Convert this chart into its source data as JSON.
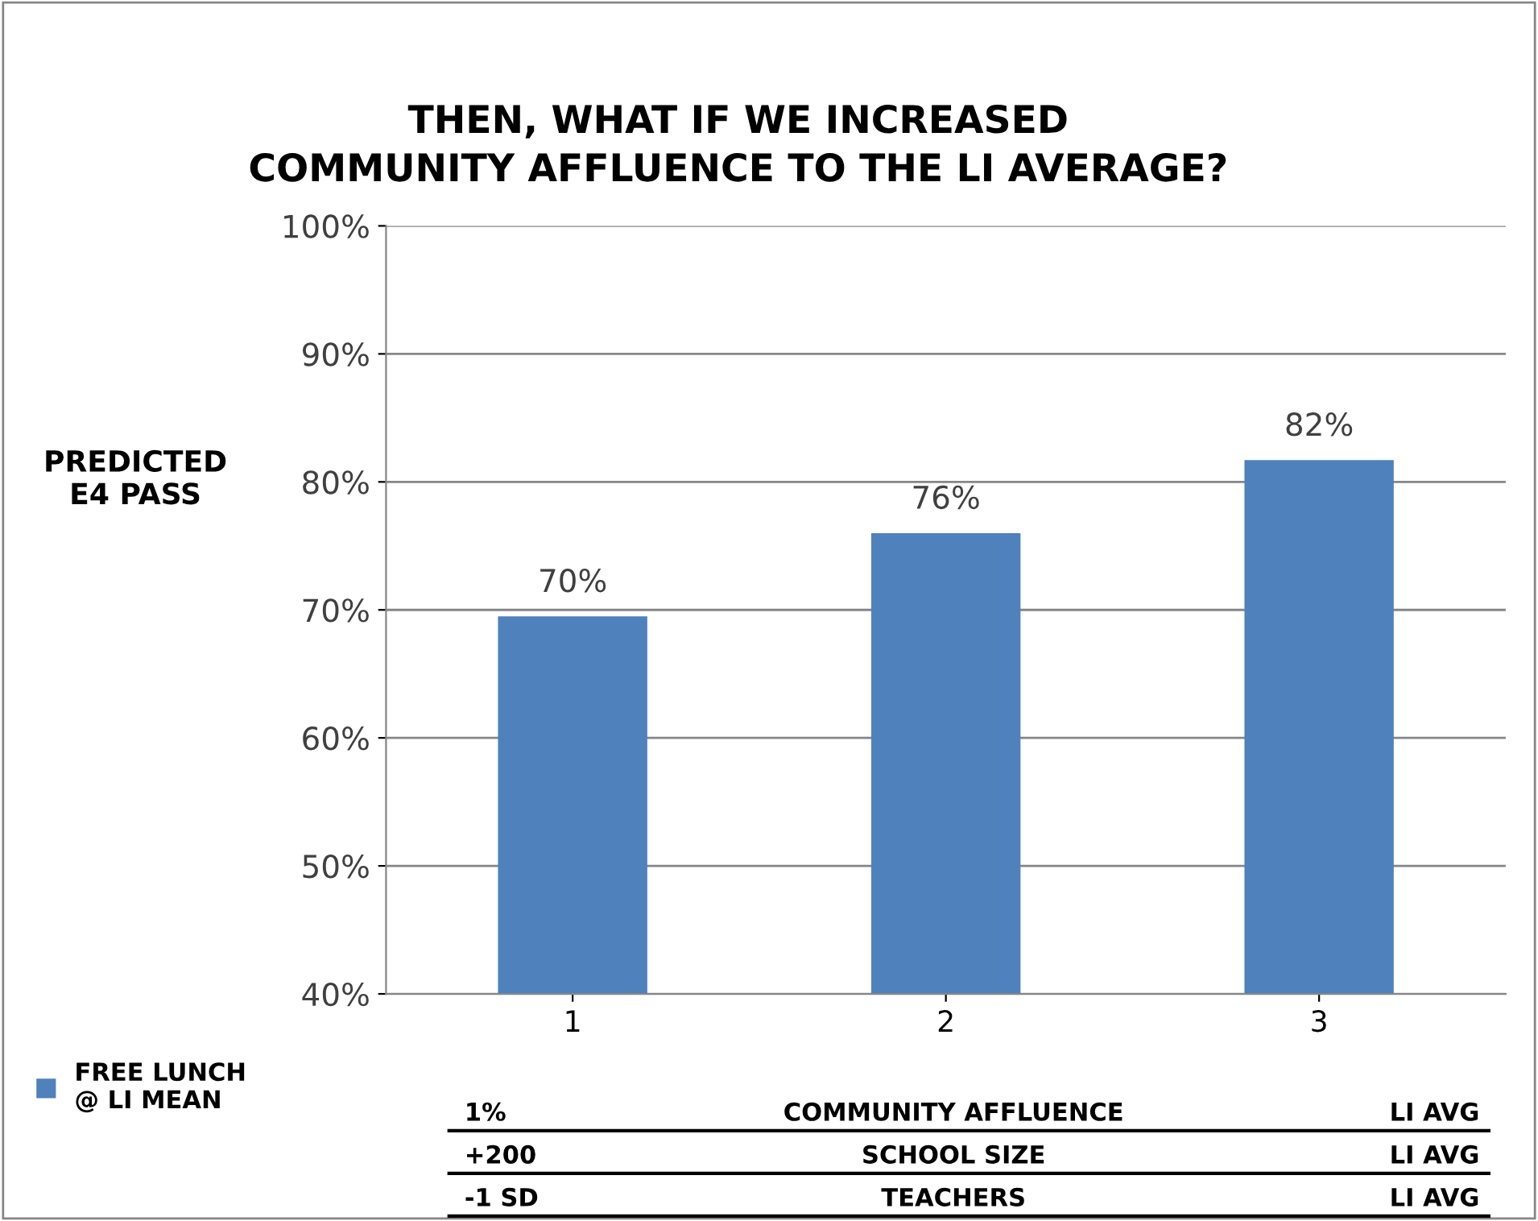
{
  "chart_data": {
    "type": "bar",
    "title": "THEN, WHAT IF WE INCREASED\nCOMMUNITY AFFLUENCE TO THE LI AVERAGE?",
    "ylabel": "PREDICTED\nE4 PASS",
    "categories": [
      "1",
      "2",
      "3"
    ],
    "series": [
      {
        "name": "FREE LUNCH\n@ LI MEAN",
        "color": "#4f81bd",
        "values": [
          69.5,
          76,
          81.7
        ],
        "value_labels": [
          "70%",
          "76%",
          "82%"
        ]
      }
    ],
    "ylim": [
      40,
      100
    ],
    "yticks": [
      {
        "value": 40,
        "label": "40%"
      },
      {
        "value": 50,
        "label": "50%"
      },
      {
        "value": 60,
        "label": "60%"
      },
      {
        "value": 70,
        "label": "70%"
      },
      {
        "value": 80,
        "label": "80%"
      },
      {
        "value": 90,
        "label": "90%"
      },
      {
        "value": 100,
        "label": "100%"
      }
    ],
    "grid": "y",
    "legend": "bottom left",
    "annotations": [
      "1%",
      "COMMUNITY AFFLUENCE",
      "LI AVG",
      "+200",
      "SCHOOL SIZE",
      "LI AVG",
      "-1 SD",
      "TEACHERS",
      "LI AVG"
    ]
  }
}
